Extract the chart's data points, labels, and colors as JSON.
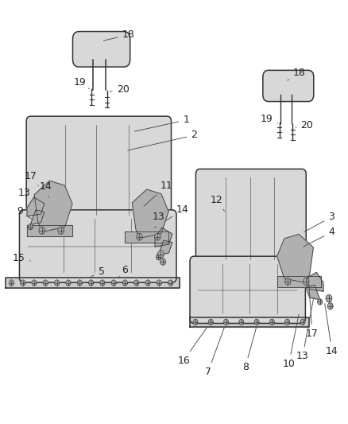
{
  "background_color": "#ffffff",
  "figsize": [
    4.38,
    5.33
  ],
  "dpi": 100,
  "line_color": "#333333",
  "font_size": 9,
  "label_color": "#222222",
  "seat_fill": "#d8d8d8",
  "bracket_fill": "#b0b0b0"
}
